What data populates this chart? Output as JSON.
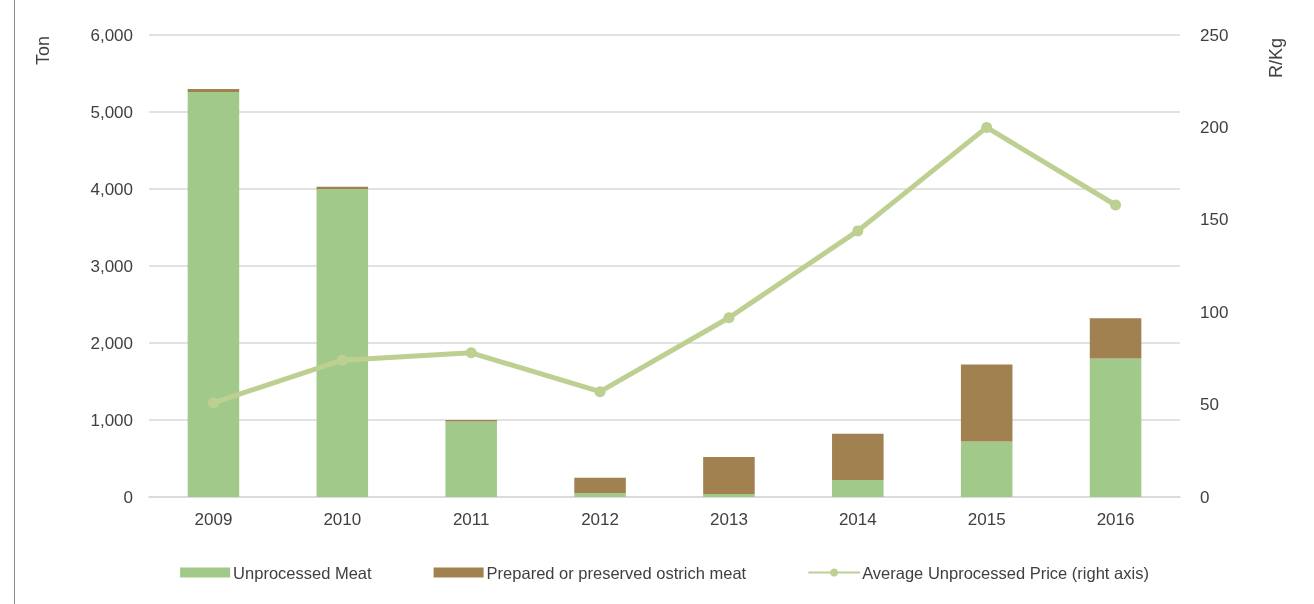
{
  "chart_data": {
    "type": "bar",
    "stacked": true,
    "categories": [
      "2009",
      "2010",
      "2011",
      "2012",
      "2013",
      "2014",
      "2015",
      "2016"
    ],
    "series": [
      {
        "name": "Unprocessed Meat",
        "color": "#a0c98a",
        "values": [
          5260,
          4000,
          980,
          50,
          40,
          220,
          720,
          1800
        ]
      },
      {
        "name": "Prepared or preserved ostrich meat",
        "color": "#a0814f",
        "values": [
          40,
          30,
          20,
          200,
          480,
          600,
          1000,
          520
        ]
      },
      {
        "name": "Average Unprocessed Price (right axis)",
        "type": "line",
        "axis": "y2",
        "color": "#bdd092",
        "values": [
          51,
          74,
          78,
          57,
          97,
          144,
          200,
          158
        ]
      }
    ],
    "ylabel": "Ton",
    "y2label": "R/Kg",
    "ylim": [
      0,
      6000
    ],
    "yticks": [
      0,
      {
        "value": 1000,
        "label": "1,000"
      },
      {
        "value": 2000,
        "label": "2,000"
      },
      {
        "value": 3000,
        "label": "3,000"
      },
      {
        "value": 4000,
        "label": "4,000"
      },
      {
        "value": 5000,
        "label": "5,000"
      },
      {
        "value": 6000,
        "label": "6,000"
      }
    ],
    "y2lim": [
      0,
      250
    ],
    "y2ticks": [
      0,
      50,
      100,
      150,
      200,
      250
    ],
    "grid": "y",
    "legend": "bottom",
    "marker": "circle",
    "line_style": "solid"
  }
}
